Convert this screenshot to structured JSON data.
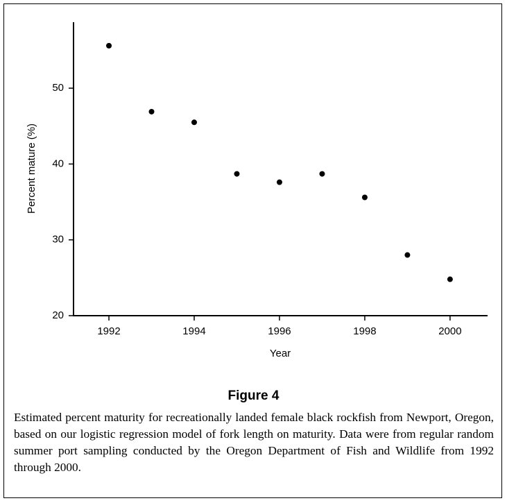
{
  "chart_data": {
    "type": "scatter",
    "x_label": "Year",
    "y_label": "Percent mature (%)",
    "x": [
      1992,
      1993,
      1994,
      1995,
      1996,
      1997,
      1998,
      1999,
      2000
    ],
    "values": [
      55.6,
      46.9,
      45.5,
      38.7,
      37.6,
      38.7,
      35.6,
      28.0,
      24.8
    ],
    "color": "#000000",
    "xlim": [
      1991.17,
      2000.88
    ],
    "xticks": [
      1992,
      1994,
      1996,
      1998,
      2000
    ],
    "ylim": [
      20,
      58.7
    ],
    "yticks": [
      20,
      30,
      40,
      50
    ],
    "figure_label": "Figure 4",
    "caption": "Estimated percent maturity for recreationally landed female black rockfish from Newport, Oregon, based on our logistic regression model of fork length on maturity. Data were from regular random summer port sampling conducted by the Oregon Department of Fish and Wildlife from 1992 through 2000."
  }
}
